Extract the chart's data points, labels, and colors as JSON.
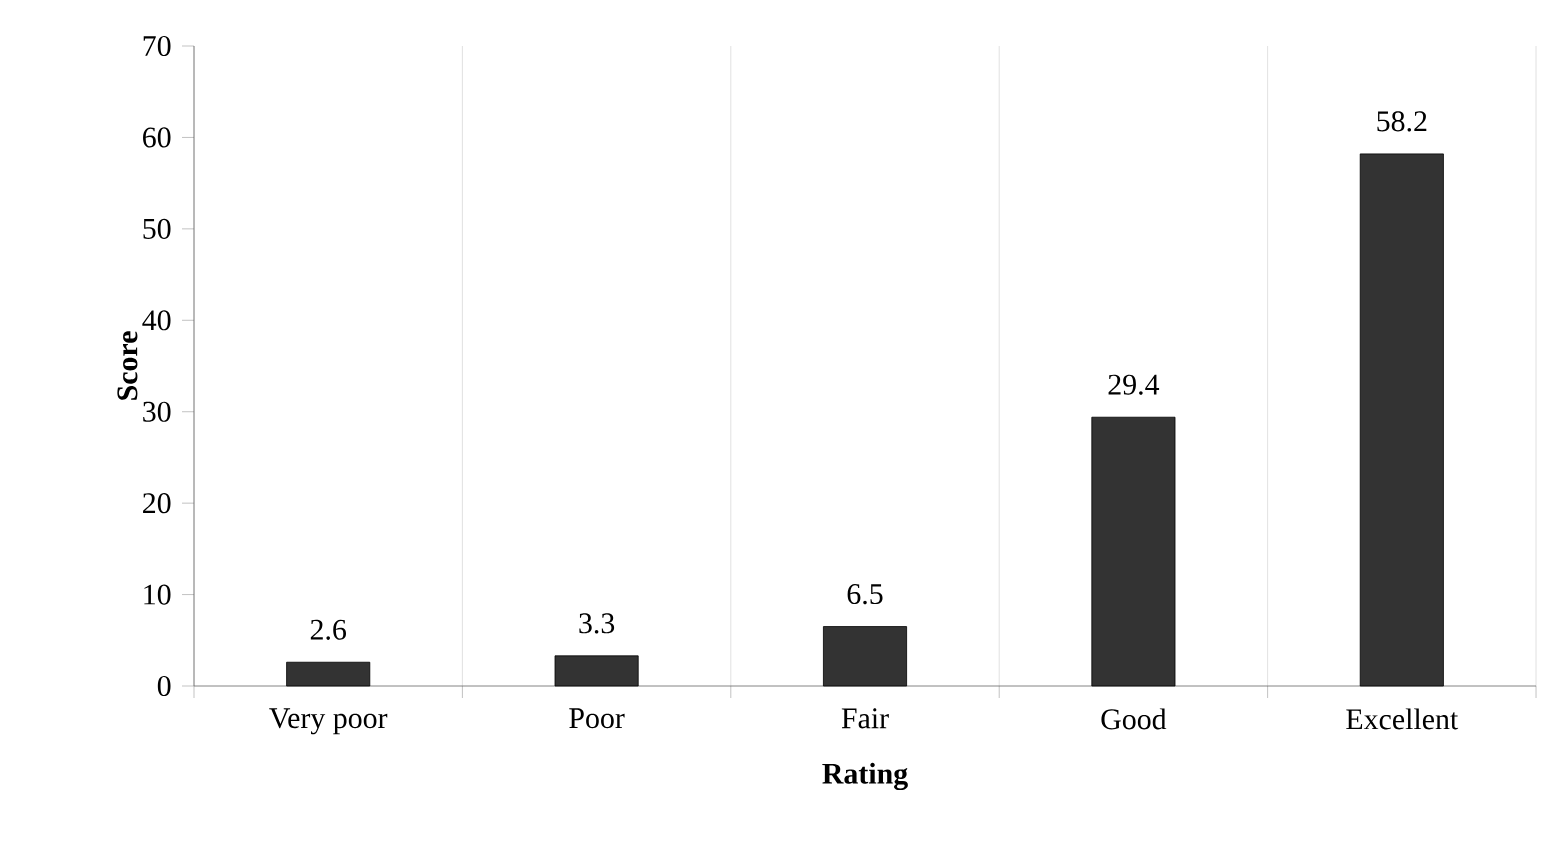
{
  "chart_data": {
    "type": "bar",
    "xlabel": "Rating",
    "ylabel": "Score",
    "categories": [
      "Very poor",
      "Poor",
      "Fair",
      "Good",
      "Excellent"
    ],
    "values": [
      2.6,
      3.3,
      6.5,
      29.4,
      58.2
    ],
    "color": "#333333",
    "ylim": [
      0,
      70
    ],
    "yticks": [
      0,
      10,
      20,
      30,
      40,
      50,
      60,
      70
    ],
    "grid": "x",
    "data_labels": true
  }
}
